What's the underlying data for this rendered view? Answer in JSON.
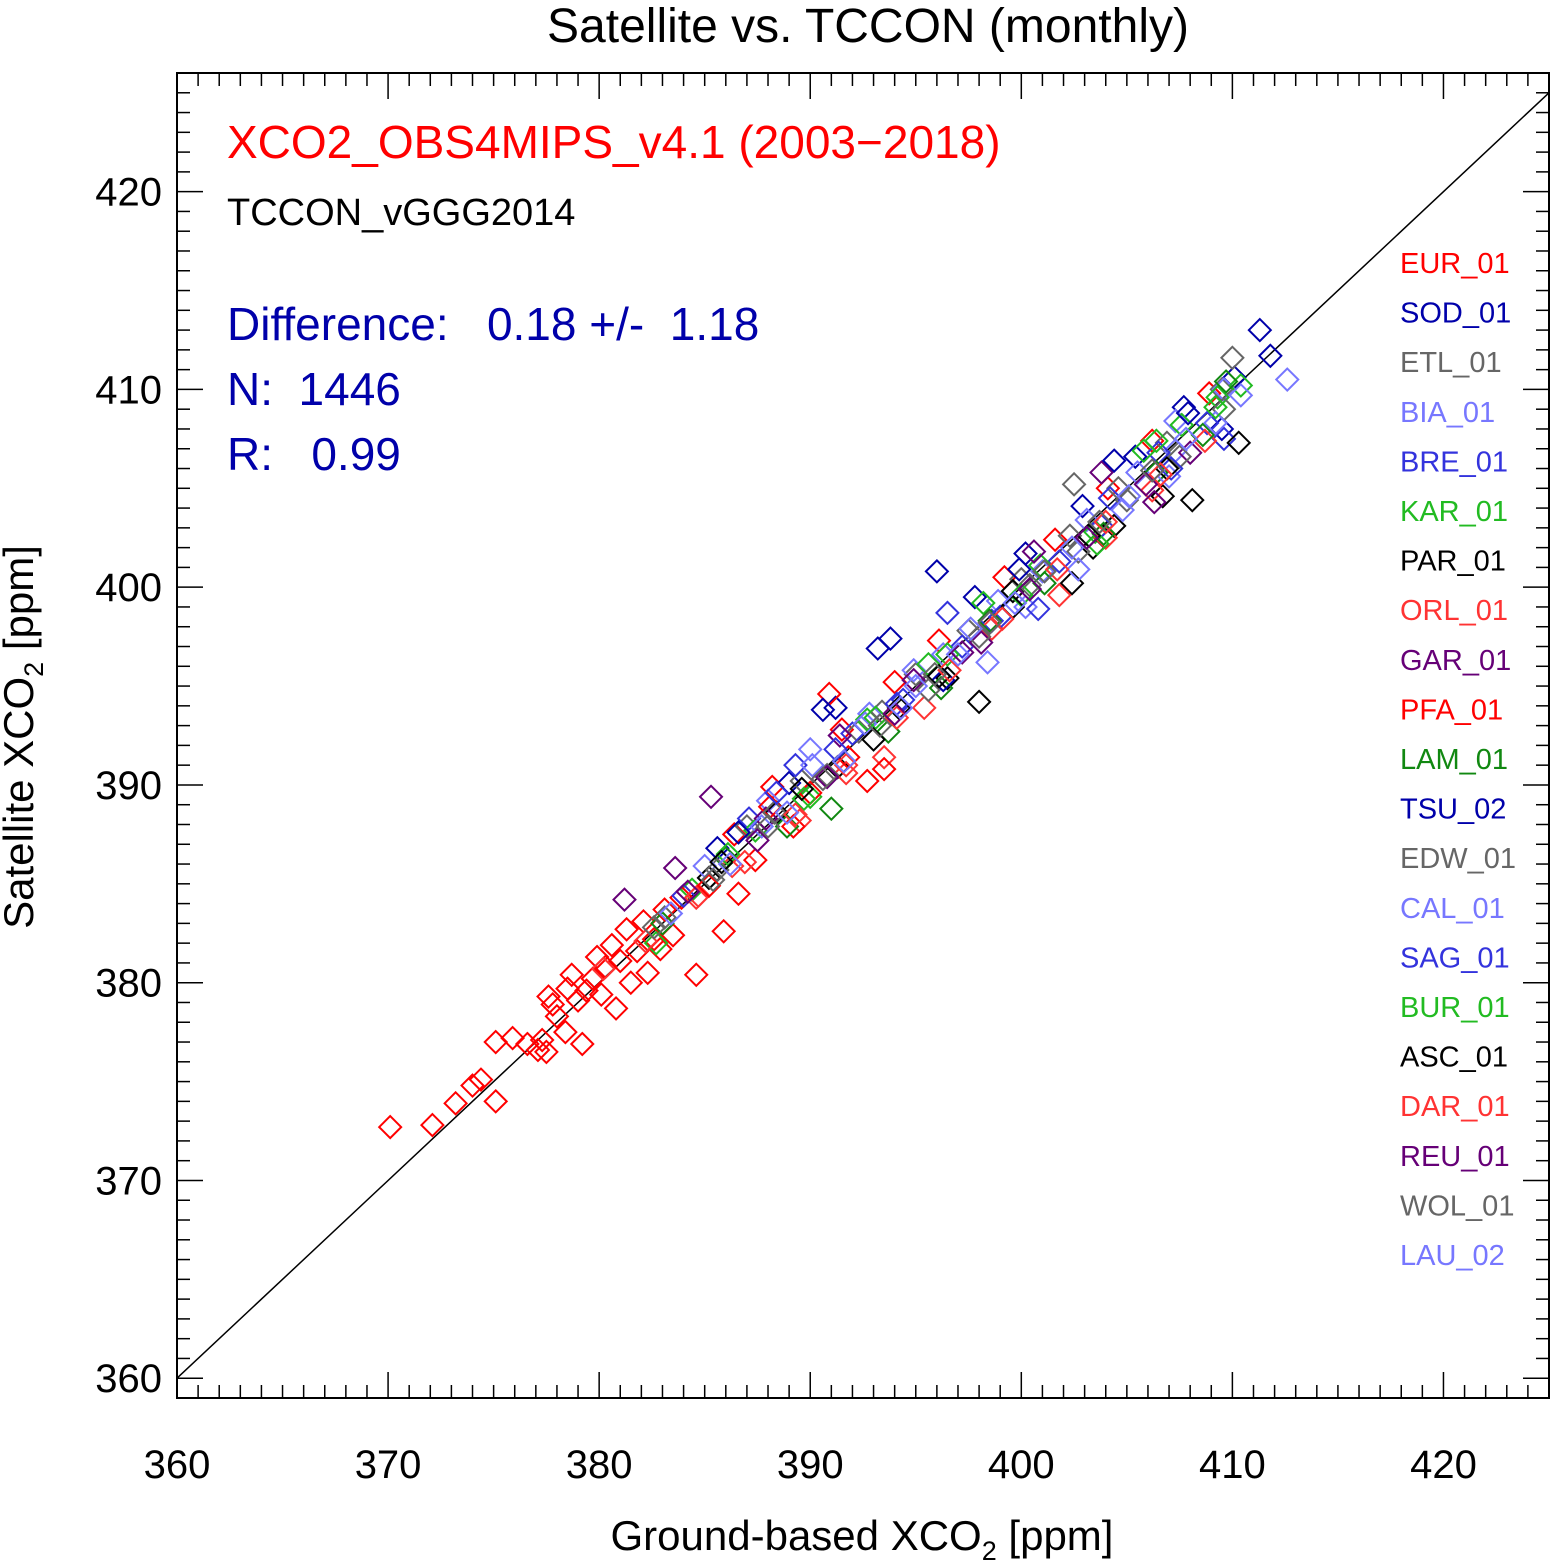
{
  "chart_data": {
    "type": "scatter",
    "title": "Satellite vs. TCCON (monthly)",
    "xlabel": "Ground-based XCO",
    "ylabel": "Satellite XCO",
    "label_subscript": "2",
    "label_unit": " [ppm]",
    "xlim": [
      360,
      425
    ],
    "ylim": [
      359,
      426
    ],
    "xticks": [
      360,
      370,
      380,
      390,
      400,
      410,
      420
    ],
    "yticks": [
      360,
      370,
      380,
      390,
      400,
      410,
      420
    ],
    "marker": "open-diamond",
    "reference_line": "1:1",
    "annotations": {
      "product": "XCO2_OBS4MIPS_v4.1 (2003−2018)",
      "reference": "TCCON_vGGG2014",
      "difference": "Difference:   0.18 +/-  1.18",
      "n": "N:  1446",
      "r": "R:   0.99"
    },
    "colors": {
      "product": "#ff0000",
      "reference": "#000000",
      "stats": "#0000aa",
      "red": "#ff0000",
      "navy": "#0000aa",
      "gray": "#666666",
      "lightblue": "#7777ff",
      "blue": "#3333dd",
      "green": "#22bb22",
      "black": "#000000",
      "redorange": "#ff3333",
      "purple": "#660077",
      "darkgreen": "#118811"
    },
    "series": [
      {
        "name": "EUR_01",
        "color": "#ff0000",
        "points": [
          [
            386.4,
            387.5
          ],
          [
            388.2,
            389.9
          ],
          [
            391.5,
            392.8
          ],
          [
            394.0,
            395.2
          ],
          [
            396.1,
            397.3
          ],
          [
            399.2,
            400.5
          ],
          [
            401.6,
            402.4
          ],
          [
            404.1,
            405.0
          ],
          [
            406.2,
            407.4
          ],
          [
            408.9,
            409.8
          ]
        ]
      },
      {
        "name": "SOD_01",
        "color": "#0000aa",
        "points": [
          [
            385.6,
            386.8
          ],
          [
            389.0,
            390.1
          ],
          [
            391.2,
            393.9
          ],
          [
            393.8,
            397.4
          ],
          [
            396.0,
            400.8
          ],
          [
            397.8,
            399.5
          ],
          [
            400.2,
            401.7
          ],
          [
            402.9,
            404.1
          ],
          [
            405.4,
            406.6
          ],
          [
            407.7,
            409.1
          ],
          [
            410.1,
            410.6
          ],
          [
            411.3,
            413.0
          ],
          [
            411.8,
            411.7
          ],
          [
            409.5,
            408.0
          ]
        ]
      },
      {
        "name": "ETL_01",
        "color": "#666666",
        "points": [
          [
            387.0,
            387.9
          ],
          [
            389.6,
            390.2
          ],
          [
            392.3,
            392.7
          ],
          [
            395.0,
            395.6
          ],
          [
            397.5,
            397.8
          ],
          [
            400.0,
            400.4
          ],
          [
            402.3,
            402.6
          ],
          [
            404.6,
            405.0
          ],
          [
            406.9,
            407.3
          ],
          [
            409.5,
            410.0
          ],
          [
            410.0,
            411.6
          ],
          [
            402.5,
            405.2
          ]
        ]
      },
      {
        "name": "BIA_01",
        "color": "#7777ff",
        "points": [
          [
            388.0,
            389.2
          ],
          [
            390.0,
            391.8
          ],
          [
            392.8,
            393.6
          ],
          [
            394.9,
            395.8
          ],
          [
            396.3,
            396.6
          ],
          [
            398.9,
            399.3
          ],
          [
            401.0,
            400.8
          ],
          [
            403.1,
            403.4
          ],
          [
            405.5,
            405.8
          ],
          [
            407.3,
            408.4
          ],
          [
            409.6,
            410.0
          ],
          [
            412.6,
            410.5
          ],
          [
            407.3,
            406.9
          ]
        ]
      },
      {
        "name": "BRE_01",
        "color": "#3333dd",
        "points": [
          [
            387.1,
            388.3
          ],
          [
            389.3,
            391.0
          ],
          [
            392.0,
            392.6
          ],
          [
            394.4,
            394.3
          ],
          [
            397.2,
            397.0
          ],
          [
            398.6,
            398.3
          ],
          [
            401.8,
            401.3
          ],
          [
            404.2,
            404.5
          ],
          [
            406.5,
            406.8
          ],
          [
            408.8,
            408.3
          ],
          [
            409.6,
            407.5
          ]
        ]
      },
      {
        "name": "KAR_01",
        "color": "#22bb22",
        "points": [
          [
            384.4,
            384.7
          ],
          [
            387.4,
            387.7
          ],
          [
            390.0,
            389.4
          ],
          [
            392.7,
            393.3
          ],
          [
            395.6,
            396.1
          ],
          [
            398.2,
            399.2
          ],
          [
            400.9,
            401.1
          ],
          [
            403.5,
            402.8
          ],
          [
            405.8,
            406.9
          ],
          [
            407.6,
            408.2
          ],
          [
            409.3,
            409.6
          ],
          [
            410.4,
            410.2
          ]
        ]
      },
      {
        "name": "PAR_01",
        "color": "#000000",
        "points": [
          [
            385.2,
            385.3
          ],
          [
            388.4,
            388.6
          ],
          [
            391.3,
            390.9
          ],
          [
            394.2,
            393.9
          ],
          [
            396.5,
            395.4
          ],
          [
            398.0,
            394.2
          ],
          [
            399.6,
            399.8
          ],
          [
            402.4,
            400.2
          ],
          [
            404.4,
            403.1
          ],
          [
            406.7,
            404.6
          ],
          [
            408.1,
            404.4
          ],
          [
            410.3,
            407.3
          ],
          [
            403.4,
            402.0
          ]
        ]
      },
      {
        "name": "ORL_01",
        "color": "#ff3333",
        "points": [
          [
            384.7,
            384.4
          ],
          [
            386.3,
            385.9
          ],
          [
            389.5,
            388.2
          ],
          [
            391.7,
            390.6
          ],
          [
            393.5,
            391.4
          ],
          [
            395.4,
            393.9
          ],
          [
            398.6,
            397.9
          ],
          [
            401.8,
            399.6
          ],
          [
            404.0,
            402.5
          ],
          [
            406.2,
            404.9
          ],
          [
            408.7,
            407.4
          ]
        ]
      },
      {
        "name": "GAR_01",
        "color": "#660077",
        "points": [
          [
            381.2,
            384.2
          ],
          [
            383.6,
            385.8
          ],
          [
            385.3,
            389.4
          ],
          [
            387.9,
            388.3
          ],
          [
            391.4,
            392.5
          ],
          [
            394.9,
            395.3
          ],
          [
            398.1,
            397.2
          ],
          [
            400.6,
            401.8
          ],
          [
            403.8,
            405.8
          ],
          [
            406.3,
            404.3
          ],
          [
            408.0,
            406.8
          ]
        ]
      },
      {
        "name": "PFA_01",
        "color": "#ff0000",
        "points": [
          [
            370.1,
            372.7
          ],
          [
            372.1,
            372.8
          ],
          [
            373.2,
            373.9
          ],
          [
            374.0,
            374.8
          ],
          [
            374.4,
            375.1
          ],
          [
            375.1,
            374.0
          ],
          [
            375.1,
            377.0
          ],
          [
            375.9,
            377.2
          ],
          [
            376.6,
            376.9
          ],
          [
            377.1,
            376.6
          ],
          [
            377.3,
            377.1
          ],
          [
            377.5,
            376.5
          ],
          [
            377.6,
            379.3
          ],
          [
            377.8,
            378.9
          ],
          [
            378.0,
            378.3
          ],
          [
            378.4,
            377.5
          ],
          [
            378.5,
            379.7
          ],
          [
            378.7,
            380.4
          ],
          [
            379.0,
            379.1
          ],
          [
            379.2,
            376.9
          ],
          [
            379.4,
            379.6
          ],
          [
            379.7,
            380.2
          ],
          [
            379.9,
            381.3
          ],
          [
            380.1,
            379.4
          ],
          [
            380.3,
            380.8
          ],
          [
            380.6,
            381.9
          ],
          [
            380.8,
            378.7
          ],
          [
            381.0,
            381.1
          ],
          [
            381.3,
            382.7
          ],
          [
            381.5,
            380.0
          ],
          [
            381.8,
            381.6
          ],
          [
            382.1,
            383.1
          ],
          [
            382.3,
            380.5
          ],
          [
            382.6,
            382.2
          ],
          [
            382.9,
            381.7
          ],
          [
            383.1,
            383.7
          ],
          [
            383.5,
            382.4
          ],
          [
            383.9,
            384.3
          ],
          [
            384.6,
            380.4
          ],
          [
            385.2,
            384.9
          ],
          [
            385.9,
            382.6
          ],
          [
            386.6,
            384.5
          ],
          [
            387.4,
            386.2
          ],
          [
            388.1,
            388.9
          ],
          [
            389.2,
            387.9
          ],
          [
            390.0,
            389.6
          ],
          [
            390.9,
            394.6
          ],
          [
            391.8,
            391.4
          ],
          [
            392.7,
            390.2
          ],
          [
            393.5,
            390.8
          ]
        ]
      },
      {
        "name": "LAM_01",
        "color": "#118811",
        "points": [
          [
            383.0,
            383.0
          ],
          [
            386.0,
            386.3
          ],
          [
            388.9,
            387.9
          ],
          [
            391.0,
            388.8
          ],
          [
            393.7,
            392.7
          ],
          [
            396.2,
            394.9
          ],
          [
            398.5,
            398.3
          ],
          [
            401.1,
            400.2
          ],
          [
            403.9,
            402.7
          ],
          [
            406.4,
            405.8
          ],
          [
            408.6,
            407.7
          ],
          [
            409.7,
            410.4
          ]
        ]
      },
      {
        "name": "TSU_02",
        "color": "#0000aa",
        "points": [
          [
            386.6,
            387.6
          ],
          [
            390.6,
            393.8
          ],
          [
            393.2,
            396.9
          ],
          [
            396.3,
            395.3
          ],
          [
            399.9,
            400.9
          ],
          [
            404.4,
            406.4
          ],
          [
            407.9,
            408.8
          ]
        ]
      },
      {
        "name": "EDW_01",
        "color": "#666666",
        "points": [
          [
            383.1,
            383.3
          ],
          [
            385.6,
            385.7
          ],
          [
            388.3,
            388.6
          ],
          [
            390.8,
            390.5
          ],
          [
            393.4,
            393.7
          ],
          [
            395.6,
            394.8
          ],
          [
            398.0,
            397.5
          ],
          [
            400.4,
            400.1
          ],
          [
            402.7,
            401.8
          ],
          [
            405.0,
            404.4
          ],
          [
            407.5,
            406.6
          ],
          [
            409.6,
            409.0
          ]
        ]
      },
      {
        "name": "CAL_01",
        "color": "#7777ff",
        "points": [
          [
            385.0,
            385.9
          ],
          [
            387.7,
            387.9
          ],
          [
            390.1,
            391.0
          ],
          [
            392.6,
            393.1
          ],
          [
            395.0,
            395.0
          ],
          [
            397.6,
            397.9
          ],
          [
            398.4,
            396.2
          ],
          [
            400.2,
            399.0
          ],
          [
            402.7,
            400.9
          ],
          [
            404.8,
            403.9
          ],
          [
            407.0,
            405.6
          ],
          [
            409.2,
            408.3
          ]
        ]
      },
      {
        "name": "SAG_01",
        "color": "#3333dd",
        "points": [
          [
            384.0,
            384.4
          ],
          [
            388.4,
            389.6
          ],
          [
            391.2,
            391.8
          ],
          [
            394.1,
            394.1
          ],
          [
            396.5,
            398.7
          ],
          [
            399.0,
            398.5
          ],
          [
            400.8,
            398.9
          ],
          [
            403.8,
            403.1
          ],
          [
            407.1,
            406.0
          ]
        ]
      },
      {
        "name": "BUR_01",
        "color": "#22bb22",
        "points": [
          [
            382.7,
            382.0
          ],
          [
            386.1,
            386.5
          ],
          [
            389.7,
            389.3
          ],
          [
            393.1,
            393.4
          ],
          [
            396.5,
            396.6
          ],
          [
            400.0,
            399.6
          ],
          [
            403.6,
            402.2
          ],
          [
            406.4,
            407.4
          ],
          [
            409.2,
            409.1
          ]
        ]
      },
      {
        "name": "ASC_01",
        "color": "#000000",
        "points": [
          [
            385.8,
            386.1
          ],
          [
            389.6,
            389.8
          ],
          [
            393.0,
            392.3
          ],
          [
            396.1,
            395.5
          ],
          [
            399.6,
            399.0
          ],
          [
            403.2,
            402.6
          ],
          [
            406.9,
            406.0
          ]
        ]
      },
      {
        "name": "DAR_01",
        "color": "#ff3333",
        "points": [
          [
            380.2,
            380.7
          ],
          [
            382.2,
            382.1
          ],
          [
            384.6,
            384.3
          ],
          [
            386.9,
            386.1
          ],
          [
            389.3,
            388.5
          ],
          [
            391.7,
            391.0
          ],
          [
            394.1,
            393.4
          ],
          [
            396.6,
            395.8
          ],
          [
            399.1,
            398.4
          ],
          [
            401.7,
            400.9
          ],
          [
            404.0,
            403.3
          ],
          [
            406.6,
            405.7
          ]
        ]
      },
      {
        "name": "REU_01",
        "color": "#660077",
        "points": [
          [
            384.2,
            384.6
          ],
          [
            387.5,
            387.2
          ],
          [
            390.8,
            390.4
          ],
          [
            394.0,
            393.6
          ],
          [
            397.2,
            396.7
          ],
          [
            400.4,
            399.9
          ],
          [
            403.1,
            402.5
          ],
          [
            405.9,
            405.2
          ]
        ]
      },
      {
        "name": "WOL_01",
        "color": "#666666",
        "points": [
          [
            382.6,
            382.8
          ],
          [
            385.4,
            385.2
          ],
          [
            388.0,
            387.9
          ],
          [
            390.6,
            390.3
          ],
          [
            393.3,
            393.0
          ],
          [
            395.9,
            395.6
          ],
          [
            398.5,
            398.2
          ],
          [
            401.1,
            400.8
          ],
          [
            403.7,
            403.3
          ],
          [
            406.2,
            405.9
          ]
        ]
      },
      {
        "name": "LAU_02",
        "color": "#7777ff",
        "points": [
          [
            383.4,
            383.5
          ],
          [
            386.2,
            386.0
          ],
          [
            388.9,
            388.6
          ],
          [
            391.6,
            391.2
          ],
          [
            394.3,
            393.9
          ],
          [
            397.0,
            396.6
          ],
          [
            399.7,
            399.2
          ],
          [
            402.4,
            402.0
          ],
          [
            405.1,
            404.6
          ],
          [
            407.8,
            407.5
          ],
          [
            410.4,
            409.7
          ]
        ]
      }
    ]
  }
}
